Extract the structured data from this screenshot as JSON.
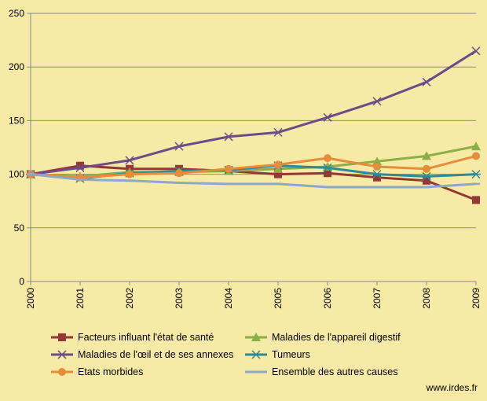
{
  "chart_data": {
    "type": "line",
    "x": [
      "2000",
      "2001",
      "2002",
      "2003",
      "2004",
      "2005",
      "2006",
      "2007",
      "2008",
      "2009"
    ],
    "ylim": [
      0,
      250
    ],
    "yticks": [
      0,
      50,
      100,
      150,
      200,
      250
    ],
    "grid": true,
    "legend": "bottom",
    "series": [
      {
        "name": "Facteurs influant l'état de santé",
        "color": "#953735",
        "marker": "square",
        "values": [
          100,
          108,
          105,
          105,
          103,
          100,
          101,
          97,
          94,
          76
        ]
      },
      {
        "name": "Maladies de l'appareil digestif",
        "color": "#8cae47",
        "marker": "triangle",
        "values": [
          100,
          98,
          102,
          102,
          103,
          105,
          107,
          112,
          117,
          126
        ]
      },
      {
        "name": "Maladies de l'œil et de ses annexes",
        "color": "#6e4a86",
        "marker": "x",
        "values": [
          100,
          106,
          113,
          126,
          135,
          139,
          153,
          168,
          186,
          215
        ]
      },
      {
        "name": "Tumeurs",
        "color": "#2f8a94",
        "marker": "star",
        "values": [
          100,
          96,
          101,
          103,
          104,
          108,
          106,
          100,
          98,
          100
        ]
      },
      {
        "name": "Etats morbides",
        "color": "#e68c3a",
        "marker": "circle",
        "values": [
          100,
          97,
          100,
          101,
          105,
          109,
          115,
          107,
          105,
          117
        ]
      },
      {
        "name": "Ensemble des autres causes",
        "color": "#8ea8cc",
        "marker": "dash",
        "values": [
          100,
          95,
          94,
          92,
          91,
          91,
          88,
          88,
          88,
          91
        ]
      }
    ]
  },
  "watermark": "www.irdes.fr"
}
